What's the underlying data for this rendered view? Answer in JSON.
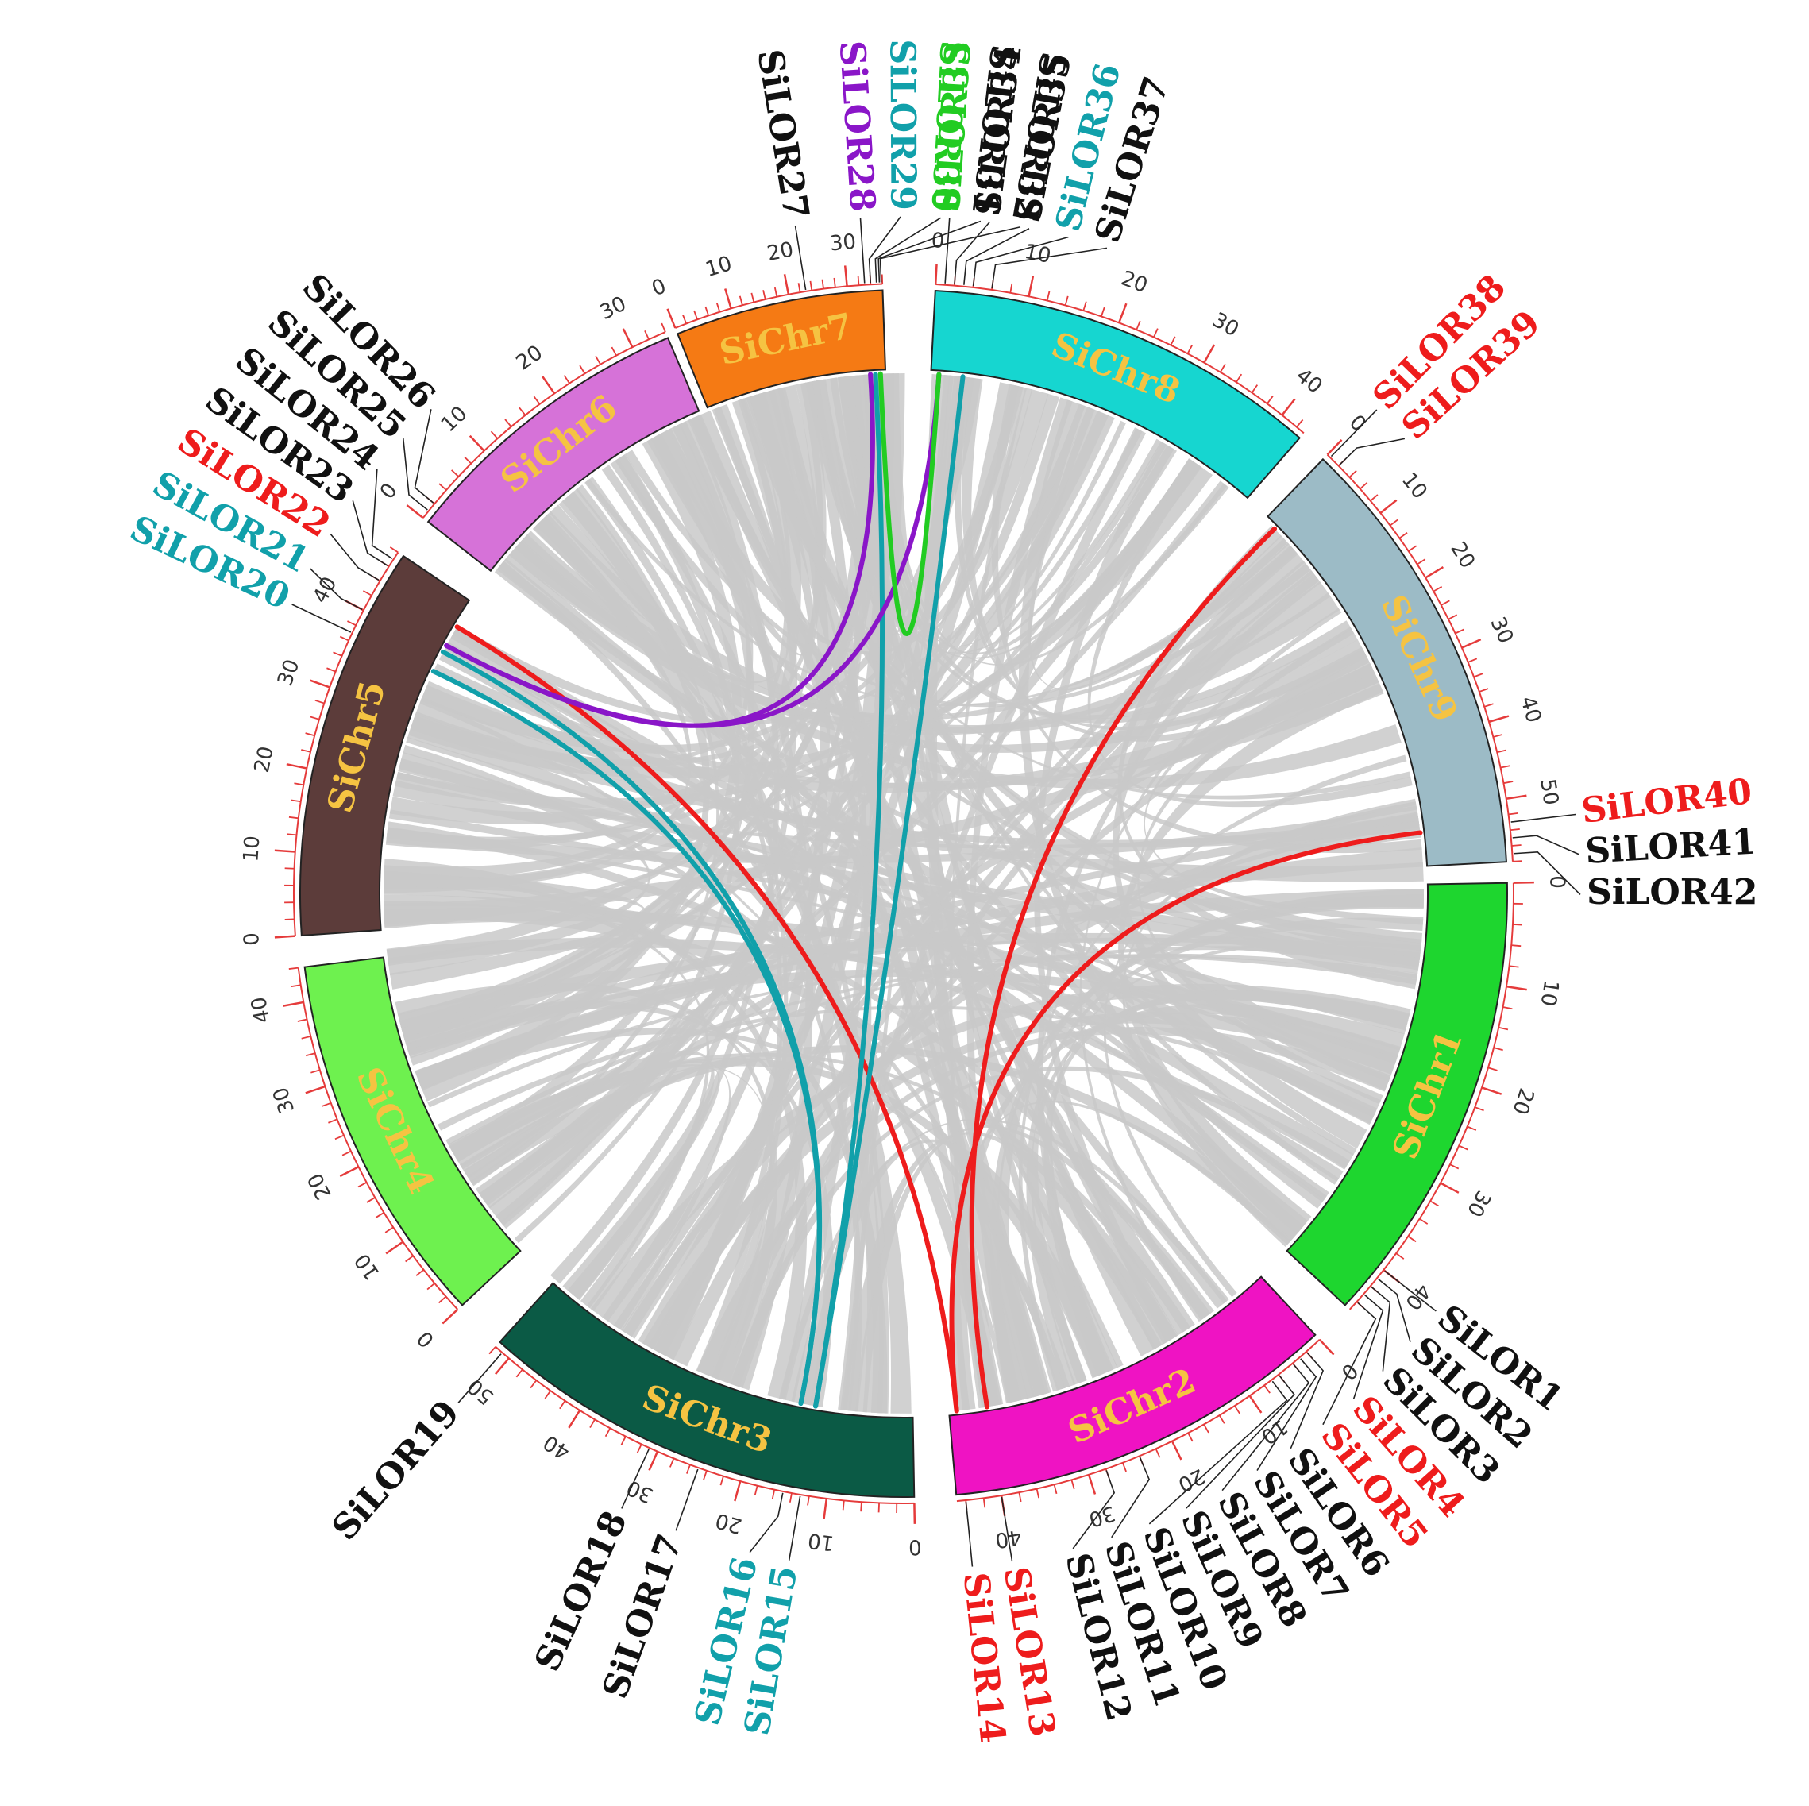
{
  "diagram": {
    "type": "circos-synteny",
    "colors": {
      "background_link": "#c9c9c9",
      "tick": "#e53b3b",
      "tick_label": "#333333",
      "leader": "#222222",
      "chr_label": "#f5c342"
    },
    "chromosomes": [
      {
        "name": "SiChr1",
        "length": 45,
        "color": "#1ed62f"
      },
      {
        "name": "SiChr2",
        "length": 45,
        "color": "#ef13c3"
      },
      {
        "name": "SiChr3",
        "length": 52,
        "color": "#0b5a45"
      },
      {
        "name": "SiChr4",
        "length": 44,
        "color": "#6ef14f"
      },
      {
        "name": "SiChr5",
        "length": 48,
        "color": "#5c3c3a"
      },
      {
        "name": "SiChr6",
        "length": 34,
        "color": "#d672d8"
      },
      {
        "name": "SiChr7",
        "length": 36,
        "color": "#f57a14"
      },
      {
        "name": "SiChr8",
        "length": 43,
        "color": "#16d6d0"
      },
      {
        "name": "SiChr9",
        "length": 58,
        "color": "#9cbbc6"
      }
    ],
    "genes": [
      {
        "name": "SiLOR1",
        "chr": "SiChr1",
        "pos": 40,
        "color": "#111111"
      },
      {
        "name": "SiLOR2",
        "chr": "SiChr1",
        "pos": 41,
        "color": "#111111"
      },
      {
        "name": "SiLOR3",
        "chr": "SiChr1",
        "pos": 42,
        "color": "#111111"
      },
      {
        "name": "SiLOR4",
        "chr": "SiChr1",
        "pos": 43,
        "color": "#ee1c1c"
      },
      {
        "name": "SiLOR5",
        "chr": "SiChr1",
        "pos": 44,
        "color": "#ee1c1c"
      },
      {
        "name": "SiLOR6",
        "chr": "SiChr2",
        "pos": 2,
        "color": "#111111"
      },
      {
        "name": "SiLOR7",
        "chr": "SiChr2",
        "pos": 3,
        "color": "#111111"
      },
      {
        "name": "SiLOR8",
        "chr": "SiChr2",
        "pos": 4,
        "color": "#111111"
      },
      {
        "name": "SiLOR9",
        "chr": "SiChr2",
        "pos": 6,
        "color": "#111111"
      },
      {
        "name": "SiLOR10",
        "chr": "SiChr2",
        "pos": 7,
        "color": "#111111"
      },
      {
        "name": "SiLOR11",
        "chr": "SiChr2",
        "pos": 24,
        "color": "#111111"
      },
      {
        "name": "SiLOR12",
        "chr": "SiChr2",
        "pos": 28,
        "color": "#111111"
      },
      {
        "name": "SiLOR13",
        "chr": "SiChr2",
        "pos": 40,
        "color": "#ee1c1c"
      },
      {
        "name": "SiLOR14",
        "chr": "SiChr2",
        "pos": 44,
        "color": "#ee1c1c"
      },
      {
        "name": "SiLOR15",
        "chr": "SiChr3",
        "pos": 13,
        "color": "#11a0aa"
      },
      {
        "name": "SiLOR16",
        "chr": "SiChr3",
        "pos": 15,
        "color": "#11a0aa"
      },
      {
        "name": "SiLOR17",
        "chr": "SiChr3",
        "pos": 25,
        "color": "#111111"
      },
      {
        "name": "SiLOR18",
        "chr": "SiChr3",
        "pos": 31,
        "color": "#111111"
      },
      {
        "name": "SiLOR19",
        "chr": "SiChr3",
        "pos": 51,
        "color": "#111111"
      },
      {
        "name": "SiLOR20",
        "chr": "SiChr5",
        "pos": 37,
        "color": "#11a0aa"
      },
      {
        "name": "SiLOR21",
        "chr": "SiChr5",
        "pos": 40,
        "color": "#11a0aa"
      },
      {
        "name": "SiLOR22",
        "chr": "SiChr5",
        "pos": 44,
        "color": "#ee1c1c"
      },
      {
        "name": "SiLOR23",
        "chr": "SiChr5",
        "pos": 46,
        "color": "#111111"
      },
      {
        "name": "SiLOR24",
        "chr": "SiChr5",
        "pos": 47,
        "color": "#111111"
      },
      {
        "name": "SiLOR25",
        "chr": "SiChr6",
        "pos": 1,
        "color": "#111111"
      },
      {
        "name": "SiLOR26",
        "chr": "SiChr6",
        "pos": 2,
        "color": "#111111"
      },
      {
        "name": "SiLOR27",
        "chr": "SiChr7",
        "pos": 23,
        "color": "#111111"
      },
      {
        "name": "SiLOR28",
        "chr": "SiChr7",
        "pos": 33,
        "color": "#8a16c8"
      },
      {
        "name": "SiLOR29",
        "chr": "SiChr7",
        "pos": 34,
        "color": "#11a0aa"
      },
      {
        "name": "SiLOR30",
        "chr": "SiChr7",
        "pos": 35,
        "color": "#22cc22"
      },
      {
        "name": "SiLOR31",
        "chr": "SiChr7",
        "pos": 35.5,
        "color": "#111111"
      },
      {
        "name": "SiLOR32",
        "chr": "SiChr7",
        "pos": 35.8,
        "color": "#111111"
      },
      {
        "name": "SiLOR33",
        "chr": "SiChr8",
        "pos": 1,
        "color": "#22cc22"
      },
      {
        "name": "SiLOR34",
        "chr": "SiChr8",
        "pos": 2,
        "color": "#111111"
      },
      {
        "name": "SiLOR35",
        "chr": "SiChr8",
        "pos": 3,
        "color": "#111111"
      },
      {
        "name": "SiLOR36",
        "chr": "SiChr8",
        "pos": 4,
        "color": "#11a0aa"
      },
      {
        "name": "SiLOR37",
        "chr": "SiChr8",
        "pos": 6,
        "color": "#111111"
      },
      {
        "name": "SiLOR38",
        "chr": "SiChr9",
        "pos": 0.5,
        "color": "#ee1c1c"
      },
      {
        "name": "SiLOR39",
        "chr": "SiChr9",
        "pos": 2,
        "color": "#ee1c1c"
      },
      {
        "name": "SiLOR40",
        "chr": "SiChr9",
        "pos": 53,
        "color": "#ee1c1c"
      },
      {
        "name": "SiLOR41",
        "chr": "SiChr9",
        "pos": 55,
        "color": "#111111"
      },
      {
        "name": "SiLOR42",
        "chr": "SiChr9",
        "pos": 57,
        "color": "#111111"
      }
    ],
    "duplication_links": [
      {
        "from": {
          "chr": "SiChr9",
          "pos": 2
        },
        "to": {
          "chr": "SiChr2",
          "pos": 40
        },
        "color": "#ee1c1c"
      },
      {
        "from": {
          "chr": "SiChr9",
          "pos": 53
        },
        "to": {
          "chr": "SiChr2",
          "pos": 44
        },
        "color": "#ee1c1c"
      },
      {
        "from": {
          "chr": "SiChr5",
          "pos": 44
        },
        "to": {
          "chr": "SiChr2",
          "pos": 44
        },
        "color": "#ee1c1c"
      },
      {
        "from": {
          "chr": "SiChr5",
          "pos": 40
        },
        "to": {
          "chr": "SiChr3",
          "pos": 15
        },
        "color": "#11a0aa"
      },
      {
        "from": {
          "chr": "SiChr5",
          "pos": 37
        },
        "to": {
          "chr": "SiChr3",
          "pos": 15
        },
        "color": "#11a0aa"
      },
      {
        "from": {
          "chr": "SiChr7",
          "pos": 34
        },
        "to": {
          "chr": "SiChr3",
          "pos": 13
        },
        "color": "#11a0aa"
      },
      {
        "from": {
          "chr": "SiChr8",
          "pos": 4
        },
        "to": {
          "chr": "SiChr3",
          "pos": 13
        },
        "color": "#11a0aa"
      },
      {
        "from": {
          "chr": "SiChr7",
          "pos": 33
        },
        "to": {
          "chr": "SiChr5",
          "pos": 41
        },
        "color": "#8a16c8"
      },
      {
        "from": {
          "chr": "SiChr8",
          "pos": 1
        },
        "to": {
          "chr": "SiChr5",
          "pos": 41
        },
        "color": "#8a16c8"
      },
      {
        "from": {
          "chr": "SiChr7",
          "pos": 35
        },
        "to": {
          "chr": "SiChr8",
          "pos": 1
        },
        "color": "#22cc22"
      }
    ]
  }
}
